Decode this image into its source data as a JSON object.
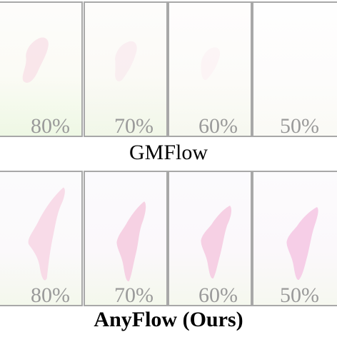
{
  "rows": [
    {
      "method": "GMFlow",
      "panels": [
        {
          "label": "80%"
        },
        {
          "label": "70%"
        },
        {
          "label": "60%"
        },
        {
          "label": "50%"
        }
      ]
    },
    {
      "method": "AnyFlow (Ours)",
      "panels": [
        {
          "label": "80%"
        },
        {
          "label": "70%"
        },
        {
          "label": "60%"
        },
        {
          "label": "50%"
        }
      ]
    }
  ],
  "colors": {
    "border": "#a8a8a8",
    "percent_text": "#9a9a9a",
    "caption_text": "#000000",
    "flow_pink": "#f7c6dc",
    "flow_green": "#e9f6dc"
  }
}
